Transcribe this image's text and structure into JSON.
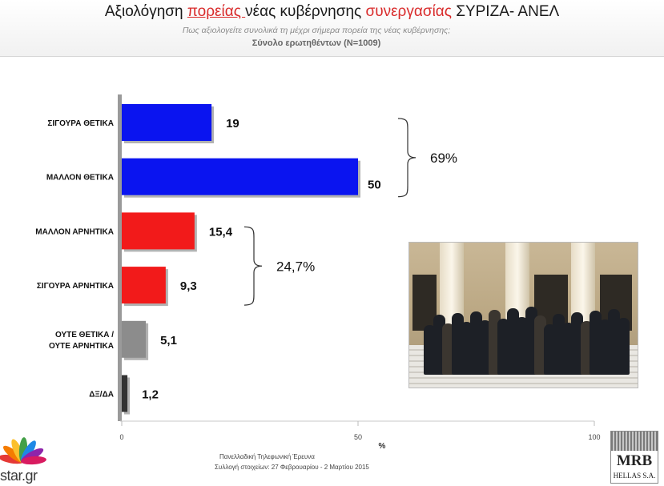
{
  "header": {
    "title_pre": "Αξιολόγηση ",
    "title_hl1": "πορείας ",
    "title_mid": "νέας κυβέρνησης ",
    "title_hl2": "συνεργασίας",
    "title_post": " ΣΥΡΙΖΑ- ΑΝΕΛ",
    "subtitle": "Πως αξιολογείτε συνολικά τη μέχρι σήμερα πορεία της νέας κυβέρνησης;",
    "sample": "Σύνολο ερωτηθέντων (N=1009)"
  },
  "chart_data": {
    "type": "bar",
    "orientation": "horizontal",
    "categories": [
      "ΣΙΓΟΥΡΑ ΘΕΤΙΚΑ",
      "ΜΑΛΛΟΝ ΘΕΤΙΚΑ",
      "ΜΑΛΛΟΝ ΑΡΝΗΤΙΚΑ",
      "ΣΙΓΟΥΡΑ ΑΡΝΗΤΙΚΑ",
      "ΟΥΤΕ ΘΕΤΙΚΑ / ΟΥΤΕ ΑΡΝΗΤΙΚΑ",
      "ΔΞ/ΔΑ"
    ],
    "values": [
      19,
      50,
      15.4,
      9.3,
      5.1,
      1.2
    ],
    "value_labels": [
      "19",
      "50",
      "15,4",
      "9,3",
      "5,1",
      "1,2"
    ],
    "colors": [
      "#0a14f0",
      "#0a14f0",
      "#f21a1a",
      "#f21a1a",
      "#8c8c8c",
      "#333333"
    ],
    "xlabel": "%",
    "xlim": [
      0,
      100
    ],
    "x_ticks": [
      "0",
      "50",
      "100"
    ],
    "groups": [
      {
        "label": "69%",
        "from": 0,
        "to": 1
      },
      {
        "label": "24,7%",
        "from": 2,
        "to": 3
      }
    ]
  },
  "footer": {
    "line1": "Πανελλαδική Τηλεφωνική Έρευνα",
    "line2": "Συλλογή στοιχείων: 27 Φεβρουαρίου - 2 Μαρτίου 2015"
  },
  "logos": {
    "left": "star.gr",
    "right_name": "MRB",
    "right_sub": "HELLAS S.A."
  }
}
